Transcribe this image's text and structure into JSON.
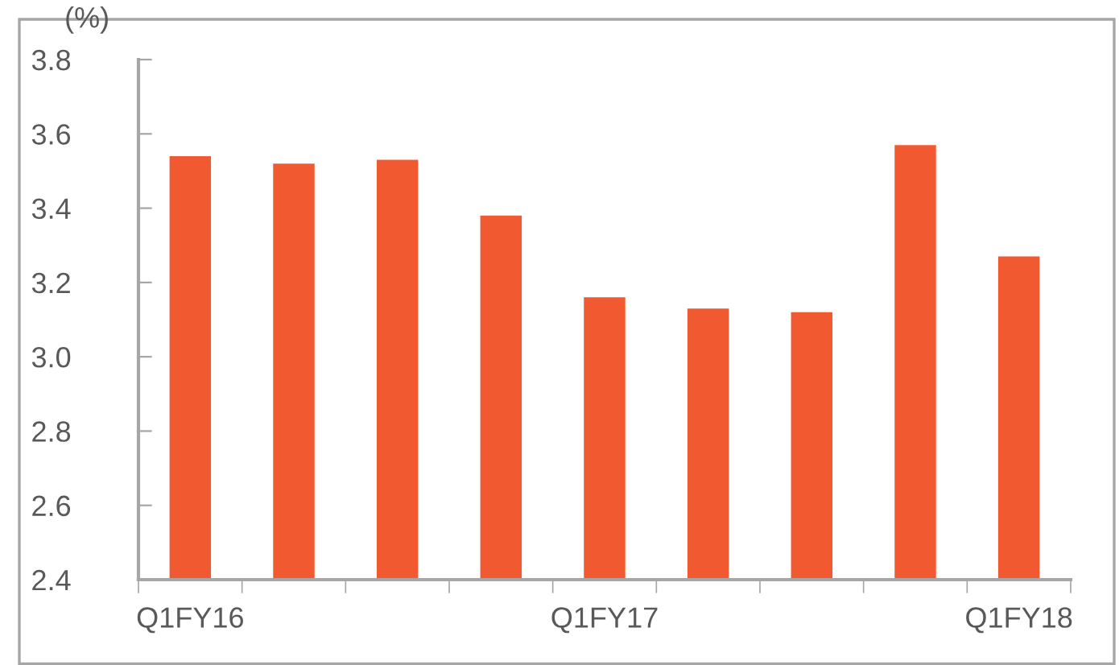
{
  "chart_data": {
    "type": "bar",
    "title": "(%)",
    "categories": [
      "Q1FY16",
      null,
      null,
      null,
      "Q1FY17",
      null,
      null,
      null,
      "Q1FY18"
    ],
    "values": [
      3.54,
      3.52,
      3.53,
      3.38,
      3.16,
      3.13,
      3.12,
      3.57,
      3.27
    ],
    "color": "#f15a31",
    "ylim": [
      2.4,
      3.8
    ],
    "yticks": [
      {
        "value": 2.4,
        "label": "2.4"
      },
      {
        "value": 2.6,
        "label": "2.6"
      },
      {
        "value": 2.8,
        "label": "2.8"
      },
      {
        "value": 3.0,
        "label": "3.0"
      },
      {
        "value": 3.2,
        "label": "3.2"
      },
      {
        "value": 3.4,
        "label": "3.4"
      },
      {
        "value": 3.6,
        "label": "3.6"
      },
      {
        "value": 3.8,
        "label": "3.8"
      }
    ],
    "grid": false,
    "legend": false
  }
}
